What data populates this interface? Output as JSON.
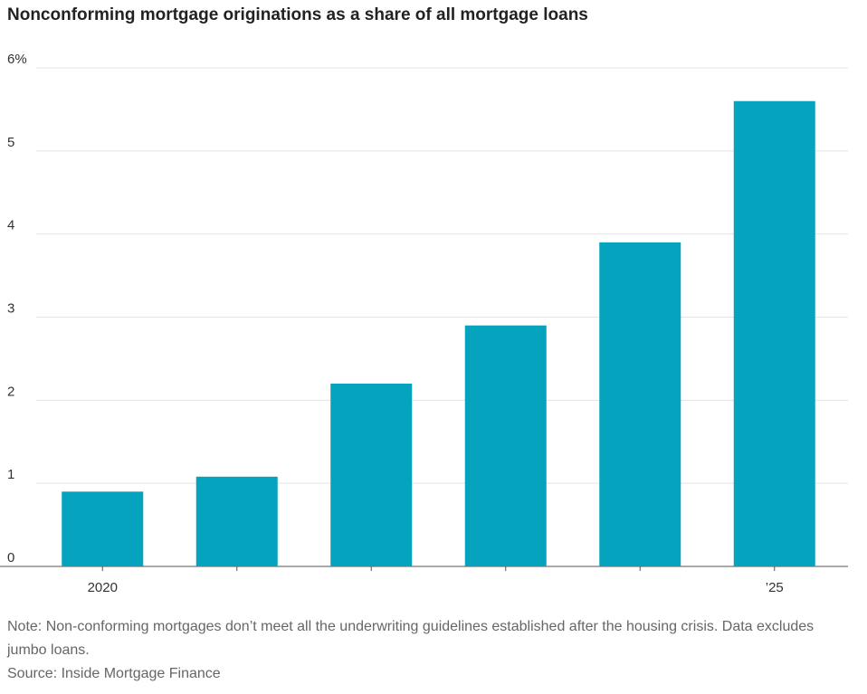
{
  "chart_data": {
    "type": "bar",
    "title": "Nonconforming mortgage originations as a share of all mortgage loans",
    "categories": [
      "2020",
      null,
      null,
      null,
      null,
      "’25"
    ],
    "values": [
      0.9,
      1.08,
      2.2,
      2.9,
      3.9,
      5.6
    ],
    "color": "#05a3bd",
    "ylim": [
      0,
      6
    ],
    "yticks": [
      0,
      1,
      2,
      3,
      4,
      5,
      {
        "value": 6,
        "label": "6%"
      }
    ],
    "grid": true,
    "note": "Note: Non-conforming mortgages don’t meet all the underwriting guidelines established after the housing crisis. Data excludes jumbo loans.",
    "source": "Source: Inside Mortgage Finance"
  }
}
